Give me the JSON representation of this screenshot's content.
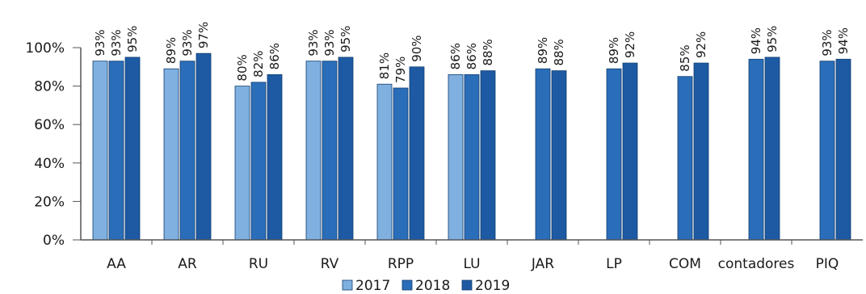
{
  "chart_data": {
    "type": "bar",
    "categories": [
      "AA",
      "AR",
      "RU",
      "RV",
      "RPP",
      "LU",
      "JAR",
      "LP",
      "COM",
      "contadores",
      "PIQ"
    ],
    "series": [
      {
        "name": "2017",
        "color": "#7fb0e0",
        "values": [
          93,
          89,
          80,
          93,
          81,
          86,
          null,
          null,
          null,
          null,
          null
        ]
      },
      {
        "name": "2018",
        "color": "#2a6db8",
        "values": [
          93,
          93,
          82,
          93,
          79,
          86,
          89,
          89,
          85,
          94,
          93
        ]
      },
      {
        "name": "2019",
        "color": "#1d5aa3",
        "values": [
          95,
          97,
          86,
          95,
          90,
          88,
          88,
          92,
          92,
          95,
          94
        ]
      }
    ],
    "labels": [
      [
        "93%",
        "89%",
        "80%",
        "93%",
        "81%",
        "86%",
        null,
        null,
        null,
        null,
        null
      ],
      [
        "93%",
        "93%",
        "82%",
        "93%",
        "79%",
        "86%",
        "89%",
        "89%",
        "85%",
        "94%",
        "93%"
      ],
      [
        "95%",
        "97%",
        "86%",
        "95%",
        "90%",
        "88%",
        "88%",
        "92%",
        "92%",
        "95%",
        "94%"
      ]
    ],
    "yticks": [
      "0%",
      "20%",
      "40%",
      "60%",
      "80%",
      "100%"
    ],
    "ylim": [
      0,
      100
    ],
    "legend_position": "bottom",
    "grid": false
  }
}
